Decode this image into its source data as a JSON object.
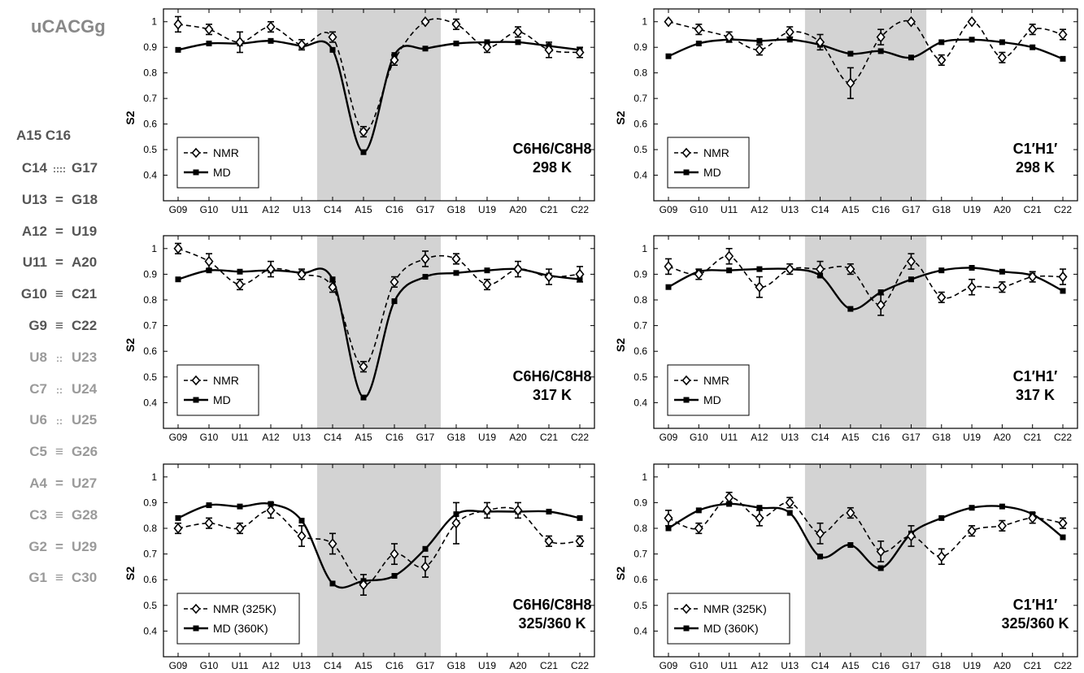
{
  "sequence": {
    "title": "uCACGg",
    "loop_pair": {
      "left": "A15",
      "right": "C16"
    },
    "pairs": [
      {
        "left": "C14",
        "sym": "::::",
        "right": "G17",
        "color": "#555555"
      },
      {
        "left": "U13",
        "sym": "=",
        "right": "G18",
        "color": "#555555"
      },
      {
        "left": "A12",
        "sym": "=",
        "right": "U19",
        "color": "#555555"
      },
      {
        "left": "U11",
        "sym": "=",
        "right": "A20",
        "color": "#555555"
      },
      {
        "left": "G10",
        "sym": "≡",
        "right": "C21",
        "color": "#555555"
      },
      {
        "left": "G9",
        "sym": "≡",
        "right": "C22",
        "color": "#555555"
      },
      {
        "left": "U8",
        "sym": "::",
        "right": "U23",
        "color": "#9a9a9a"
      },
      {
        "left": "C7",
        "sym": "::",
        "right": "U24",
        "color": "#9a9a9a"
      },
      {
        "left": "U6",
        "sym": "::",
        "right": "U25",
        "color": "#9a9a9a"
      },
      {
        "left": "C5",
        "sym": "≡",
        "right": "G26",
        "color": "#9a9a9a"
      },
      {
        "left": "A4",
        "sym": "=",
        "right": "U27",
        "color": "#9a9a9a"
      },
      {
        "left": "C3",
        "sym": "≡",
        "right": "G28",
        "color": "#9a9a9a"
      },
      {
        "left": "G2",
        "sym": "=",
        "right": "U29",
        "color": "#9a9a9a"
      },
      {
        "left": "G1",
        "sym": "≡",
        "right": "C30",
        "color": "#9a9a9a"
      }
    ]
  },
  "chart_data": [
    {
      "type": "line",
      "ylabel": "S2",
      "ylim": [
        0.3,
        1.05
      ],
      "yticks": [
        "0.4",
        "0.5",
        "0.6",
        "0.7",
        "0.8",
        "0.9",
        "1"
      ],
      "categories": [
        "G09",
        "G10",
        "U11",
        "A12",
        "U13",
        "C14",
        "A15",
        "C16",
        "G17",
        "G18",
        "U19",
        "A20",
        "C21",
        "C22"
      ],
      "shaded": [
        "C14",
        "G17"
      ],
      "annotation": [
        "C6H6/C8H8",
        "298 K"
      ],
      "series": [
        {
          "name": "NMR",
          "values": [
            0.99,
            0.97,
            0.92,
            0.98,
            0.91,
            0.94,
            0.57,
            0.85,
            1.0,
            0.99,
            0.9,
            0.96,
            0.89,
            0.88
          ],
          "err": [
            0.03,
            0.02,
            0.04,
            0.02,
            0.02,
            0.02,
            0.02,
            0.02,
            0.0,
            0.02,
            0.02,
            0.02,
            0.03,
            0.02
          ]
        },
        {
          "name": "MD",
          "values": [
            0.89,
            0.915,
            0.915,
            0.925,
            0.905,
            0.89,
            0.49,
            0.87,
            0.895,
            0.915,
            0.92,
            0.92,
            0.905,
            0.89
          ]
        }
      ]
    },
    {
      "type": "line",
      "ylabel": "S2",
      "ylim": [
        0.3,
        1.05
      ],
      "yticks": [
        "0.4",
        "0.5",
        "0.6",
        "0.7",
        "0.8",
        "0.9",
        "1"
      ],
      "categories": [
        "G09",
        "G10",
        "U11",
        "A12",
        "U13",
        "C14",
        "A15",
        "C16",
        "G17",
        "G18",
        "U19",
        "A20",
        "C21",
        "C22"
      ],
      "shaded": [
        "C14",
        "G17"
      ],
      "annotation": [
        "C1′H1′",
        "298 K"
      ],
      "series": [
        {
          "name": "NMR",
          "values": [
            1.0,
            0.97,
            0.94,
            0.89,
            0.96,
            0.92,
            0.76,
            0.94,
            1.0,
            0.85,
            1.0,
            0.86,
            0.97,
            0.95
          ],
          "err": [
            0.0,
            0.02,
            0.02,
            0.02,
            0.02,
            0.03,
            0.06,
            0.03,
            0.0,
            0.02,
            0.0,
            0.02,
            0.02,
            0.02
          ]
        },
        {
          "name": "MD",
          "values": [
            0.865,
            0.915,
            0.93,
            0.925,
            0.93,
            0.91,
            0.875,
            0.885,
            0.86,
            0.92,
            0.93,
            0.92,
            0.9,
            0.855
          ]
        }
      ]
    },
    {
      "type": "line",
      "ylabel": "S2",
      "ylim": [
        0.3,
        1.05
      ],
      "yticks": [
        "0.4",
        "0.5",
        "0.6",
        "0.7",
        "0.8",
        "0.9",
        "1"
      ],
      "categories": [
        "G09",
        "G10",
        "U11",
        "A12",
        "U13",
        "C14",
        "A15",
        "C16",
        "G17",
        "G18",
        "U19",
        "A20",
        "C21",
        "C22"
      ],
      "shaded": [
        "C14",
        "G17"
      ],
      "annotation": [
        "C6H6/C8H8",
        "317 K"
      ],
      "series": [
        {
          "name": "NMR",
          "values": [
            1.0,
            0.95,
            0.86,
            0.92,
            0.9,
            0.85,
            0.54,
            0.87,
            0.96,
            0.96,
            0.86,
            0.92,
            0.89,
            0.9
          ],
          "err": [
            0.02,
            0.03,
            0.02,
            0.03,
            0.02,
            0.02,
            0.02,
            0.02,
            0.03,
            0.02,
            0.02,
            0.03,
            0.03,
            0.03
          ]
        },
        {
          "name": "MD",
          "values": [
            0.88,
            0.915,
            0.91,
            0.915,
            0.905,
            0.88,
            0.42,
            0.795,
            0.89,
            0.905,
            0.915,
            0.92,
            0.895,
            0.88
          ]
        }
      ]
    },
    {
      "type": "line",
      "ylabel": "S2",
      "ylim": [
        0.3,
        1.05
      ],
      "yticks": [
        "0.4",
        "0.5",
        "0.6",
        "0.7",
        "0.8",
        "0.9",
        "1"
      ],
      "categories": [
        "G09",
        "G10",
        "U11",
        "A12",
        "U13",
        "C14",
        "A15",
        "C16",
        "G17",
        "G18",
        "U19",
        "A20",
        "C21",
        "C22"
      ],
      "shaded": [
        "C14",
        "G17"
      ],
      "annotation": [
        "C1′H1′",
        "317 K"
      ],
      "series": [
        {
          "name": "NMR",
          "values": [
            0.93,
            0.9,
            0.97,
            0.85,
            0.92,
            0.92,
            0.92,
            0.78,
            0.95,
            0.81,
            0.85,
            0.85,
            0.89,
            0.89
          ],
          "err": [
            0.03,
            0.02,
            0.03,
            0.04,
            0.02,
            0.03,
            0.02,
            0.04,
            0.03,
            0.02,
            0.03,
            0.02,
            0.02,
            0.03
          ]
        },
        {
          "name": "MD",
          "values": [
            0.85,
            0.91,
            0.915,
            0.92,
            0.92,
            0.895,
            0.765,
            0.83,
            0.88,
            0.915,
            0.925,
            0.91,
            0.895,
            0.835
          ]
        }
      ]
    },
    {
      "type": "line",
      "ylabel": "S2",
      "ylim": [
        0.3,
        1.05
      ],
      "yticks": [
        "0.4",
        "0.5",
        "0.6",
        "0.7",
        "0.8",
        "0.9",
        "1"
      ],
      "categories": [
        "G09",
        "G10",
        "U11",
        "A12",
        "U13",
        "C14",
        "A15",
        "C16",
        "G17",
        "G18",
        "U19",
        "A20",
        "C21",
        "C22"
      ],
      "shaded": [
        "C14",
        "G17"
      ],
      "annotation": [
        "C6H6/C8H8",
        "325/360 K"
      ],
      "series": [
        {
          "name": "NMR (325K)",
          "values": [
            0.8,
            0.82,
            0.8,
            0.87,
            0.77,
            0.74,
            0.58,
            0.7,
            0.65,
            0.82,
            0.87,
            0.87,
            0.75,
            0.75
          ],
          "err": [
            0.02,
            0.02,
            0.02,
            0.03,
            0.04,
            0.04,
            0.04,
            0.04,
            0.04,
            0.08,
            0.03,
            0.03,
            0.02,
            0.02
          ]
        },
        {
          "name": "MD (360K)",
          "values": [
            0.84,
            0.89,
            0.885,
            0.895,
            0.83,
            0.585,
            0.595,
            0.615,
            0.72,
            0.855,
            0.865,
            0.865,
            0.865,
            0.84
          ]
        }
      ]
    },
    {
      "type": "line",
      "ylabel": "S2",
      "ylim": [
        0.3,
        1.05
      ],
      "yticks": [
        "0.4",
        "0.5",
        "0.6",
        "0.7",
        "0.8",
        "0.9",
        "1"
      ],
      "categories": [
        "G09",
        "G10",
        "U11",
        "A12",
        "U13",
        "C14",
        "A15",
        "C16",
        "G17",
        "G18",
        "U19",
        "A20",
        "C21",
        "C22"
      ],
      "shaded": [
        "C14",
        "G17"
      ],
      "annotation": [
        "C1′H1′",
        "325/360 K"
      ],
      "series": [
        {
          "name": "NMR (325K)",
          "values": [
            0.84,
            0.8,
            0.92,
            0.84,
            0.9,
            0.78,
            0.86,
            0.71,
            0.77,
            0.69,
            0.79,
            0.81,
            0.84,
            0.82
          ],
          "err": [
            0.03,
            0.02,
            0.02,
            0.03,
            0.02,
            0.04,
            0.02,
            0.04,
            0.04,
            0.03,
            0.02,
            0.02,
            0.02,
            0.02
          ]
        },
        {
          "name": "MD (360K)",
          "values": [
            0.8,
            0.87,
            0.895,
            0.88,
            0.86,
            0.69,
            0.735,
            0.645,
            0.78,
            0.84,
            0.88,
            0.885,
            0.855,
            0.765
          ]
        }
      ]
    }
  ]
}
